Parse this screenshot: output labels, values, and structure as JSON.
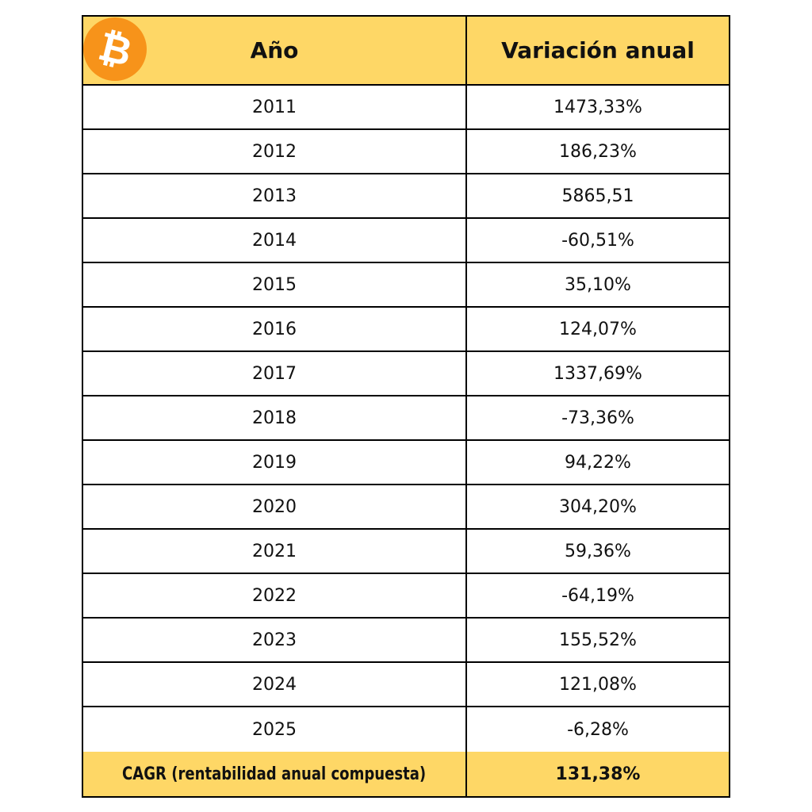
{
  "header": {
    "year": "Año",
    "variation": "Variación anual",
    "logo_icon": "bitcoin-icon"
  },
  "rows": [
    {
      "year": "2011",
      "variation": "1473,33%"
    },
    {
      "year": "2012",
      "variation": "186,23%"
    },
    {
      "year": "2013",
      "variation": "5865,51"
    },
    {
      "year": "2014",
      "variation": "-60,51%"
    },
    {
      "year": "2015",
      "variation": "35,10%"
    },
    {
      "year": "2016",
      "variation": "124,07%"
    },
    {
      "year": "2017",
      "variation": "1337,69%"
    },
    {
      "year": "2018",
      "variation": "-73,36%"
    },
    {
      "year": "2019",
      "variation": "94,22%"
    },
    {
      "year": "2020",
      "variation": "304,20%"
    },
    {
      "year": "2021",
      "variation": "59,36%"
    },
    {
      "year": "2022",
      "variation": "-64,19%"
    },
    {
      "year": "2023",
      "variation": "155,52%"
    },
    {
      "year": "2024",
      "variation": "121,08%"
    },
    {
      "year": "2025",
      "variation": "-6,28%"
    }
  ],
  "footer": {
    "label": "CAGR (rentabilidad anual compuesta)",
    "value": "131,38%"
  },
  "colors": {
    "header_bg": "#fed766",
    "logo": "#f7931a"
  }
}
